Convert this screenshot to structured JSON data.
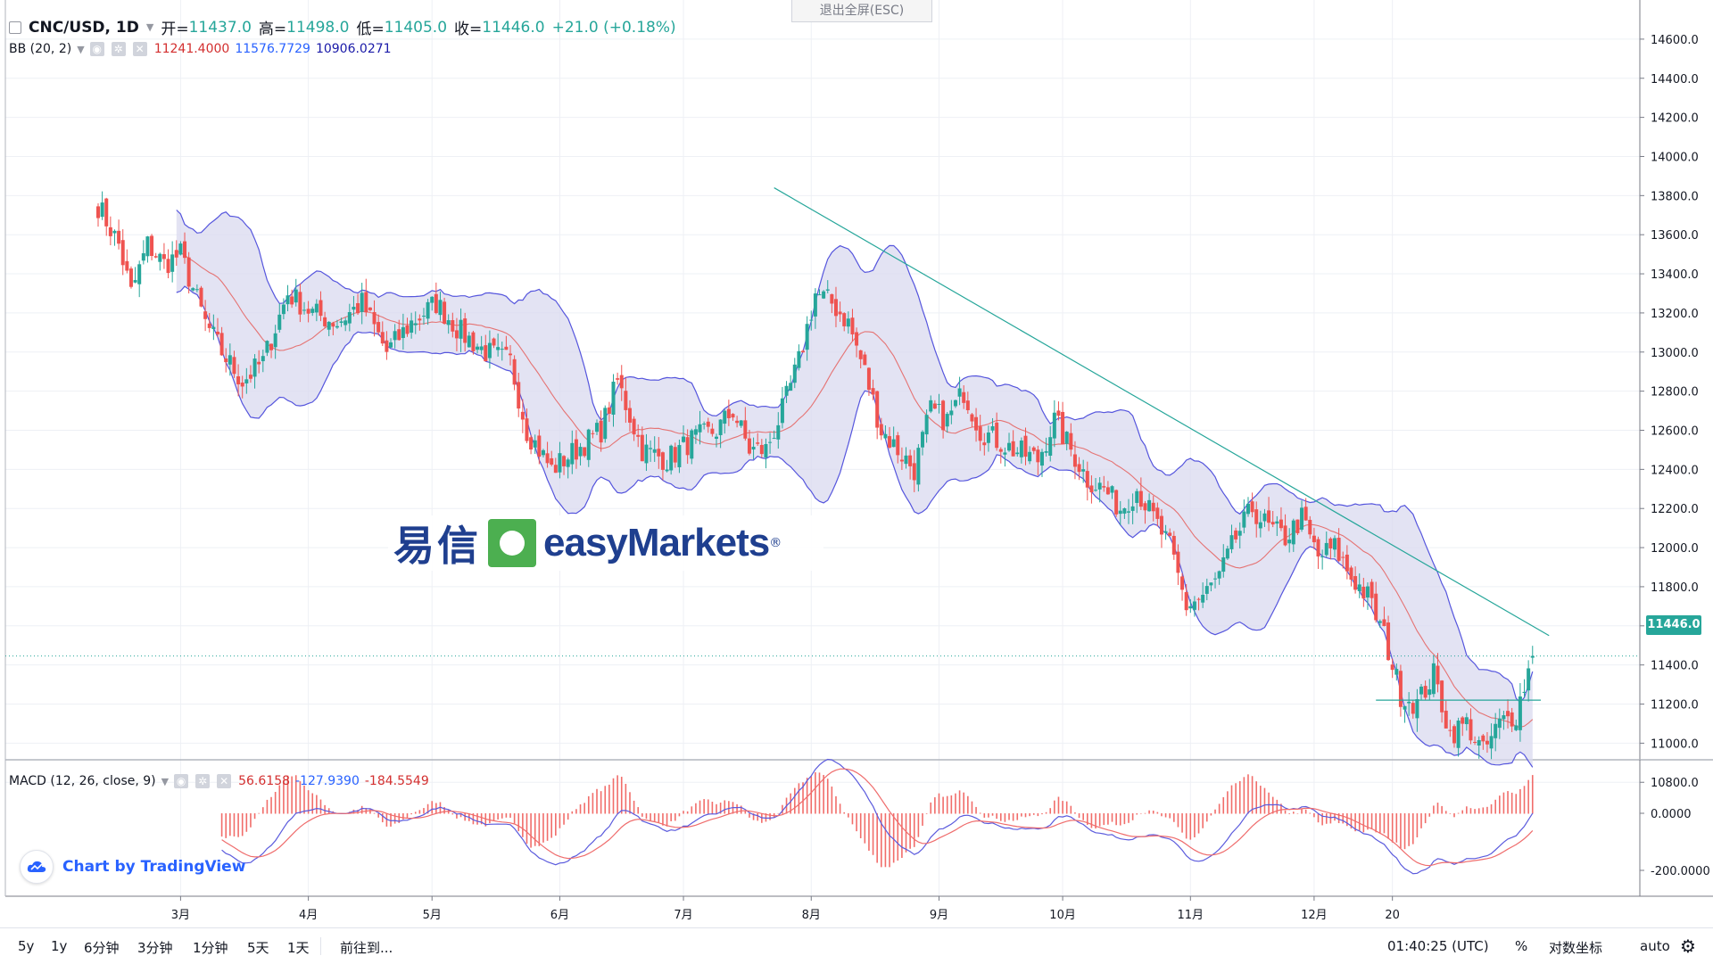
{
  "header": {
    "symbol": "CNC/USD, 1D",
    "open_label": "开=",
    "open": "11437.0",
    "high_label": "高=",
    "high": "11498.0",
    "low_label": "低=",
    "low": "11405.0",
    "close_label": "收=",
    "close": "11446.0",
    "change": "+21.0 (+0.18%)"
  },
  "indicators": {
    "bb": {
      "name": "BB (20, 2)",
      "mid": "11241.4000",
      "upper": "11576.7729",
      "lower": "10906.0271"
    },
    "macd": {
      "name": "MACD (12, 26, close, 9)",
      "hist": "56.6158",
      "macd": "-127.9390",
      "signal": "-184.5549"
    }
  },
  "exit_fullscreen": "退出全屏(ESC)",
  "last_price_tag": "11446.0",
  "watermark": {
    "cn": "易信",
    "en": "easyMarkets",
    "reg": "®"
  },
  "tradingview": "Chart by TradingView",
  "toolbar": {
    "ranges": [
      "5y",
      "1y",
      "6分钟",
      "3分钟",
      "1分钟",
      "5天",
      "1天"
    ],
    "goto": "前往到...",
    "time": "01:40:25 (UTC)",
    "percent": "%",
    "log": "对数坐标",
    "auto": "auto",
    "settings_icon": "gear-icon"
  },
  "colors": {
    "up": "#26a69a",
    "down": "#ef5350",
    "bb_band": "#5555dd",
    "bb_mid": "#e57373",
    "bb_fill": "#d9d9ef",
    "trend": "#26a69a",
    "macd_line": "#5b5bdd",
    "signal_line": "#ef6c6c"
  },
  "chart_data": [
    {
      "type": "candlestick",
      "symbol": "CNC/USD",
      "interval": "1D",
      "y_axis_ticks": [
        14600,
        14400,
        14200,
        14000,
        13800,
        13600,
        13400,
        13200,
        13000,
        12800,
        12600,
        12400,
        12200,
        12000,
        11800,
        11600,
        11400,
        11200,
        11000,
        10800
      ],
      "y_axis_labels": [
        "14600.0",
        "14400.0",
        "14200.0",
        "14000.0",
        "13800.0",
        "13600.0",
        "13400.0",
        "13200.0",
        "13000.0",
        "12800.0",
        "12600.0",
        "12400.0",
        "12200.0",
        "12000.0",
        "11800.0",
        "11600.0",
        "11400.0",
        "11200.0",
        "11000.0",
        "10800.0"
      ],
      "x_axis_labels": [
        "3月",
        "4月",
        "5月",
        "6月",
        "7月",
        "8月",
        "9月",
        "10月",
        "11月",
        "12月",
        "20"
      ],
      "x_axis_label_days": [
        20,
        51,
        81,
        112,
        142,
        173,
        204,
        234,
        265,
        295,
        314
      ],
      "ylim": [
        10750,
        14650
      ],
      "last_price": 11446.0,
      "grid": true,
      "close_series": [
        {
          "day": 0,
          "close": 13750
        },
        {
          "day": 5,
          "close": 13550
        },
        {
          "day": 8,
          "close": 13300
        },
        {
          "day": 12,
          "close": 13550
        },
        {
          "day": 16,
          "close": 13450
        },
        {
          "day": 20,
          "close": 13500
        },
        {
          "day": 26,
          "close": 13150
        },
        {
          "day": 30,
          "close": 13000
        },
        {
          "day": 35,
          "close": 12850
        },
        {
          "day": 40,
          "close": 12950
        },
        {
          "day": 46,
          "close": 13300
        },
        {
          "day": 52,
          "close": 13200
        },
        {
          "day": 58,
          "close": 13150
        },
        {
          "day": 64,
          "close": 13250
        },
        {
          "day": 70,
          "close": 13000
        },
        {
          "day": 76,
          "close": 13150
        },
        {
          "day": 82,
          "close": 13250
        },
        {
          "day": 88,
          "close": 13100
        },
        {
          "day": 94,
          "close": 13000
        },
        {
          "day": 100,
          "close": 12950
        },
        {
          "day": 104,
          "close": 12600
        },
        {
          "day": 110,
          "close": 12400
        },
        {
          "day": 116,
          "close": 12500
        },
        {
          "day": 122,
          "close": 12600
        },
        {
          "day": 126,
          "close": 12850
        },
        {
          "day": 132,
          "close": 12500
        },
        {
          "day": 138,
          "close": 12450
        },
        {
          "day": 144,
          "close": 12550
        },
        {
          "day": 150,
          "close": 12600
        },
        {
          "day": 154,
          "close": 12700
        },
        {
          "day": 158,
          "close": 12500
        },
        {
          "day": 162,
          "close": 12500
        },
        {
          "day": 166,
          "close": 12700
        },
        {
          "day": 170,
          "close": 12950
        },
        {
          "day": 174,
          "close": 13300
        },
        {
          "day": 178,
          "close": 13250
        },
        {
          "day": 182,
          "close": 13150
        },
        {
          "day": 186,
          "close": 12900
        },
        {
          "day": 190,
          "close": 12600
        },
        {
          "day": 194,
          "close": 12500
        },
        {
          "day": 198,
          "close": 12400
        },
        {
          "day": 202,
          "close": 12700
        },
        {
          "day": 206,
          "close": 12650
        },
        {
          "day": 210,
          "close": 12800
        },
        {
          "day": 214,
          "close": 12600
        },
        {
          "day": 218,
          "close": 12550
        },
        {
          "day": 222,
          "close": 12500
        },
        {
          "day": 228,
          "close": 12450
        },
        {
          "day": 232,
          "close": 12650
        },
        {
          "day": 236,
          "close": 12500
        },
        {
          "day": 240,
          "close": 12350
        },
        {
          "day": 244,
          "close": 12300
        },
        {
          "day": 248,
          "close": 12200
        },
        {
          "day": 252,
          "close": 12300
        },
        {
          "day": 256,
          "close": 12150
        },
        {
          "day": 260,
          "close": 12000
        },
        {
          "day": 264,
          "close": 11700
        },
        {
          "day": 268,
          "close": 11750
        },
        {
          "day": 272,
          "close": 11850
        },
        {
          "day": 276,
          "close": 12050
        },
        {
          "day": 280,
          "close": 12200
        },
        {
          "day": 284,
          "close": 12100
        },
        {
          "day": 288,
          "close": 12050
        },
        {
          "day": 292,
          "close": 12150
        },
        {
          "day": 296,
          "close": 11950
        },
        {
          "day": 300,
          "close": 12000
        },
        {
          "day": 304,
          "close": 11850
        },
        {
          "day": 308,
          "close": 11750
        },
        {
          "day": 312,
          "close": 11550
        },
        {
          "day": 316,
          "close": 11250
        },
        {
          "day": 320,
          "close": 11200
        },
        {
          "day": 324,
          "close": 11350
        },
        {
          "day": 328,
          "close": 11050
        },
        {
          "day": 332,
          "close": 11100
        },
        {
          "day": 336,
          "close": 10950
        },
        {
          "day": 340,
          "close": 11100
        },
        {
          "day": 344,
          "close": 11150
        },
        {
          "day": 348,
          "close": 11446
        }
      ],
      "overlays": {
        "bollinger": "BB (20, 2)",
        "trendline_desc": {
          "from": {
            "day": 164,
            "price": 13840
          },
          "to": {
            "day": 352,
            "price": 11550
          }
        },
        "support_line": {
          "from": {
            "day": 310,
            "price": 11220
          },
          "to": {
            "day": 350,
            "price": 11220
          }
        }
      }
    },
    {
      "type": "macd",
      "name": "MACD (12, 26, close, 9)",
      "y_axis_labels": [
        "0.0000",
        "-200.0000"
      ],
      "y_axis_ticks": [
        0,
        -200
      ],
      "ylim": [
        -250,
        180
      ]
    }
  ]
}
